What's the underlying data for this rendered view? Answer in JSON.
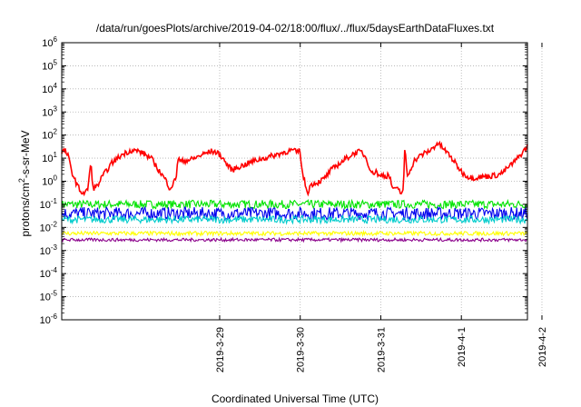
{
  "chart_data": {
    "type": "line",
    "title": "/data/run/goesPlots/archive/2019-04-02/18:00/flux/../flux/5daysEarthDataFluxes.txt",
    "xlabel": "Coordinated Universal Time (UTC)",
    "ylabel_prefix": "protons/cm",
    "ylabel_sup": "2",
    "ylabel_suffix": "-s-sr-MeV",
    "y_scale": "log",
    "ylim": [
      1e-06,
      1000000.0
    ],
    "y_ticks": [
      {
        "base": "10",
        "exp": "-6",
        "value": 1e-06
      },
      {
        "base": "10",
        "exp": "-5",
        "value": 1e-05
      },
      {
        "base": "10",
        "exp": "-4",
        "value": 0.0001
      },
      {
        "base": "10",
        "exp": "-3",
        "value": 0.001
      },
      {
        "base": "10",
        "exp": "-2",
        "value": 0.01
      },
      {
        "base": "10",
        "exp": "-1",
        "value": 0.1
      },
      {
        "base": "10",
        "exp": "0",
        "value": 1
      },
      {
        "base": "10",
        "exp": "1",
        "value": 10
      },
      {
        "base": "10",
        "exp": "2",
        "value": 100
      },
      {
        "base": "10",
        "exp": "3",
        "value": 1000
      },
      {
        "base": "10",
        "exp": "4",
        "value": 10000
      },
      {
        "base": "10",
        "exp": "5",
        "value": 100000
      },
      {
        "base": "10",
        "exp": "6",
        "value": 1000000
      }
    ],
    "x_ticks": [
      "2019-3-29",
      "2019-3-30",
      "2019-3-31",
      "2019-4-1",
      "2019-4-2"
    ],
    "x_range_days": [
      -1.96,
      3.82
    ],
    "grid": true,
    "series": [
      {
        "color": "#ff0000",
        "points": [
          [
            -1.96,
            18
          ],
          [
            -1.92,
            22
          ],
          [
            -1.88,
            12
          ],
          [
            -1.84,
            3
          ],
          [
            -1.8,
            1.2
          ],
          [
            -1.76,
            0.6
          ],
          [
            -1.72,
            0.35
          ],
          [
            -1.68,
            0.3
          ],
          [
            -1.64,
            0.4
          ],
          [
            -1.6,
            6
          ],
          [
            -1.57,
            0.5
          ],
          [
            -1.52,
            0.6
          ],
          [
            -1.46,
            1.5
          ],
          [
            -1.4,
            3
          ],
          [
            -1.34,
            6
          ],
          [
            -1.28,
            9
          ],
          [
            -1.2,
            15
          ],
          [
            -1.1,
            22
          ],
          [
            -1.0,
            20
          ],
          [
            -0.92,
            14
          ],
          [
            -0.84,
            9
          ],
          [
            -0.78,
            4
          ],
          [
            -0.72,
            2
          ],
          [
            -0.66,
            1
          ],
          [
            -0.62,
            0.5
          ],
          [
            -0.58,
            0.7
          ],
          [
            -0.54,
            1.5
          ],
          [
            -0.52,
            10
          ],
          [
            -0.48,
            7
          ],
          [
            -0.42,
            8
          ],
          [
            -0.34,
            9
          ],
          [
            -0.26,
            12
          ],
          [
            -0.18,
            16
          ],
          [
            -0.1,
            20
          ],
          [
            -0.04,
            18
          ],
          [
            0.0,
            14
          ],
          [
            0.04,
            10
          ],
          [
            0.08,
            6
          ],
          [
            0.12,
            4
          ],
          [
            0.16,
            3
          ],
          [
            0.22,
            4
          ],
          [
            0.3,
            5
          ],
          [
            0.4,
            7
          ],
          [
            0.5,
            9
          ],
          [
            0.6,
            11
          ],
          [
            0.7,
            14
          ],
          [
            0.8,
            18
          ],
          [
            0.9,
            22
          ],
          [
            0.96,
            18
          ],
          [
            1.0,
            22
          ],
          [
            1.02,
            3
          ],
          [
            1.06,
            0.8
          ],
          [
            1.09,
            0.3
          ],
          [
            1.12,
            0.6
          ],
          [
            1.16,
            0.8
          ],
          [
            1.22,
            0.9
          ],
          [
            1.3,
            1.3
          ],
          [
            1.38,
            3
          ],
          [
            1.46,
            5
          ],
          [
            1.54,
            8
          ],
          [
            1.62,
            13
          ],
          [
            1.7,
            18
          ],
          [
            1.76,
            19
          ],
          [
            1.82,
            10
          ],
          [
            1.86,
            4
          ],
          [
            1.9,
            2
          ],
          [
            1.94,
            3
          ],
          [
            1.98,
            1.5
          ],
          [
            2.02,
            2
          ],
          [
            2.06,
            1.6
          ],
          [
            2.1,
            2
          ],
          [
            2.14,
            0.6
          ],
          [
            2.18,
            0.4
          ],
          [
            2.22,
            0.5
          ],
          [
            2.25,
            0.3
          ],
          [
            2.28,
            0.4
          ],
          [
            2.3,
            35
          ],
          [
            2.33,
            1.5
          ],
          [
            2.36,
            3
          ],
          [
            2.42,
            8
          ],
          [
            2.48,
            12
          ],
          [
            2.54,
            16
          ],
          [
            2.6,
            20
          ],
          [
            2.66,
            30
          ],
          [
            2.7,
            45
          ],
          [
            2.74,
            35
          ],
          [
            2.78,
            25
          ],
          [
            2.84,
            15
          ],
          [
            2.9,
            8
          ],
          [
            2.96,
            4
          ],
          [
            3.02,
            2.2
          ],
          [
            3.08,
            1.6
          ],
          [
            3.14,
            1.4
          ],
          [
            3.22,
            1.5
          ],
          [
            3.3,
            1.6
          ],
          [
            3.38,
            1.7
          ],
          [
            3.46,
            1.9
          ],
          [
            3.52,
            2.5
          ],
          [
            3.58,
            4
          ],
          [
            3.64,
            6
          ],
          [
            3.7,
            10
          ],
          [
            3.76,
            18
          ],
          [
            3.82,
            32
          ]
        ],
        "noise_dex": 0.12
      },
      {
        "color": "#00e400",
        "level": 0.1,
        "noise_dex": 0.18
      },
      {
        "color": "#0000ee",
        "level": 0.04,
        "noise_dex": 0.28
      },
      {
        "color": "#00cccc",
        "level": 0.022,
        "noise_dex": 0.16
      },
      {
        "color": "#ffff00",
        "level": 0.0055,
        "noise_dex": 0.09
      },
      {
        "color": "#8b008b",
        "level": 0.0029,
        "noise_dex": 0.07
      }
    ]
  }
}
